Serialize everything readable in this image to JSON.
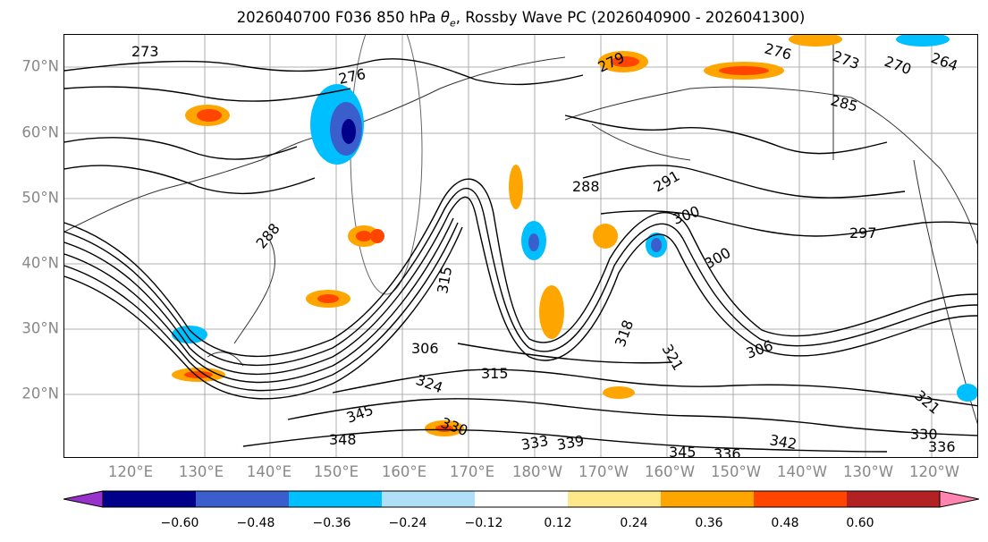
{
  "title": {
    "prefix": "2026040700 F036 850 hPa ",
    "symbol": "θ",
    "subscript": "e",
    "suffix": ", Rossby Wave PC (2026040900 - 2026041300)"
  },
  "latitude_labels": [
    "70°N",
    "60°N",
    "50°N",
    "40°N",
    "30°N",
    "20°N"
  ],
  "longitude_labels": [
    "120°E",
    "130°E",
    "140°E",
    "150°E",
    "160°E",
    "170°E",
    "180°W",
    "170°W",
    "160°W",
    "150°W",
    "140°W",
    "130°W",
    "120°W"
  ],
  "contour_labels": [
    "273",
    "276",
    "279",
    "276",
    "273",
    "270",
    "264",
    "285",
    "288",
    "291",
    "300",
    "297",
    "300",
    "306",
    "315",
    "318",
    "321",
    "306",
    "324",
    "330",
    "315",
    "333",
    "339",
    "342",
    "345",
    "336",
    "345",
    "348",
    "321",
    "330",
    "336",
    "288"
  ],
  "colorbar": {
    "tick_labels": [
      "−0.60",
      "−0.48",
      "−0.36",
      "−0.24",
      "−0.12",
      "0.12",
      "0.24",
      "0.36",
      "0.48",
      "0.60"
    ],
    "colors": [
      "#9932cc",
      "#00008b",
      "#3a5fcd",
      "#00bfff",
      "#b0e0f8",
      "#ffffff",
      "#ffe88a",
      "#ffa500",
      "#ff4500",
      "#b22222",
      "#ff85b0"
    ],
    "under_color": "#9932cc",
    "over_color": "#ff85b0"
  }
}
